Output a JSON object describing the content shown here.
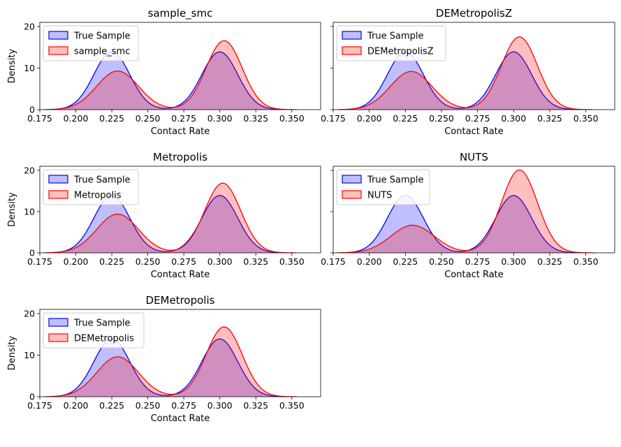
{
  "chart_data": [
    {
      "type": "area",
      "title": "sample_smc",
      "xlabel": "Contact Rate",
      "ylabel": "Density",
      "xlim": [
        0.175,
        0.37
      ],
      "ylim": [
        0,
        21
      ],
      "xticks": [
        "0.175",
        "0.200",
        "0.225",
        "0.250",
        "0.275",
        "0.300",
        "0.325",
        "0.350"
      ],
      "yticks": [
        "0",
        "10",
        "20"
      ],
      "legend": "top-left",
      "series": [
        {
          "name": "True Sample",
          "color": "#0000ff",
          "fill": "#bfbfff",
          "components": [
            {
              "mean": 0.225,
              "sd": 0.0125,
              "peak": 13.9
            },
            {
              "mean": 0.3,
              "sd": 0.0125,
              "peak": 13.9
            }
          ]
        },
        {
          "name": "sample_smc",
          "color": "#ff0000",
          "fill": "#ffbfbf",
          "components": [
            {
              "mean": 0.229,
              "sd": 0.0145,
              "peak": 9.3
            },
            {
              "mean": 0.303,
              "sd": 0.0125,
              "peak": 16.6
            }
          ]
        }
      ]
    },
    {
      "type": "area",
      "title": "DEMetropolisZ",
      "xlabel": "Contact Rate",
      "ylabel": "",
      "xlim": [
        0.175,
        0.37
      ],
      "ylim": [
        0,
        21
      ],
      "xticks": [
        "0.175",
        "0.200",
        "0.225",
        "0.250",
        "0.275",
        "0.300",
        "0.325",
        "0.350"
      ],
      "yticks": [],
      "legend": "top-left",
      "series": [
        {
          "name": "True Sample",
          "color": "#0000ff",
          "fill": "#bfbfff",
          "components": [
            {
              "mean": 0.225,
              "sd": 0.0125,
              "peak": 13.9
            },
            {
              "mean": 0.3,
              "sd": 0.0125,
              "peak": 13.9
            }
          ]
        },
        {
          "name": "DEMetropolisZ",
          "color": "#ff0000",
          "fill": "#ffbfbf",
          "components": [
            {
              "mean": 0.229,
              "sd": 0.0145,
              "peak": 9.2
            },
            {
              "mean": 0.304,
              "sd": 0.0125,
              "peak": 17.5
            }
          ]
        }
      ]
    },
    {
      "type": "area",
      "title": "Metropolis",
      "xlabel": "Contact Rate",
      "ylabel": "Density",
      "xlim": [
        0.175,
        0.37
      ],
      "ylim": [
        0,
        21
      ],
      "xticks": [
        "0.175",
        "0.200",
        "0.225",
        "0.250",
        "0.275",
        "0.300",
        "0.325",
        "0.350"
      ],
      "yticks": [
        "0",
        "10",
        "20"
      ],
      "legend": "top-left",
      "series": [
        {
          "name": "True Sample",
          "color": "#0000ff",
          "fill": "#bfbfff",
          "components": [
            {
              "mean": 0.225,
              "sd": 0.0125,
              "peak": 13.9
            },
            {
              "mean": 0.3,
              "sd": 0.0125,
              "peak": 13.9
            }
          ]
        },
        {
          "name": "Metropolis",
          "color": "#ff0000",
          "fill": "#ffbfbf",
          "components": [
            {
              "mean": 0.229,
              "sd": 0.0145,
              "peak": 9.4
            },
            {
              "mean": 0.302,
              "sd": 0.0125,
              "peak": 16.9
            }
          ]
        }
      ]
    },
    {
      "type": "area",
      "title": "NUTS",
      "xlabel": "Contact Rate",
      "ylabel": "",
      "xlim": [
        0.175,
        0.37
      ],
      "ylim": [
        0,
        21
      ],
      "xticks": [
        "0.175",
        "0.200",
        "0.225",
        "0.250",
        "0.275",
        "0.300",
        "0.325",
        "0.350"
      ],
      "yticks": [],
      "legend": "top-left",
      "series": [
        {
          "name": "True Sample",
          "color": "#0000ff",
          "fill": "#bfbfff",
          "components": [
            {
              "mean": 0.225,
              "sd": 0.0125,
              "peak": 13.9
            },
            {
              "mean": 0.3,
              "sd": 0.0125,
              "peak": 13.9
            }
          ]
        },
        {
          "name": "NUTS",
          "color": "#ff0000",
          "fill": "#ffbfbf",
          "components": [
            {
              "mean": 0.23,
              "sd": 0.015,
              "peak": 6.7
            },
            {
              "mean": 0.304,
              "sd": 0.0125,
              "peak": 20.1
            }
          ]
        }
      ]
    },
    {
      "type": "area",
      "title": "DEMetropolis",
      "xlabel": "Contact Rate",
      "ylabel": "Density",
      "xlim": [
        0.175,
        0.37
      ],
      "ylim": [
        0,
        21
      ],
      "xticks": [
        "0.175",
        "0.200",
        "0.225",
        "0.250",
        "0.275",
        "0.300",
        "0.325",
        "0.350"
      ],
      "yticks": [
        "0",
        "10",
        "20"
      ],
      "legend": "top-left",
      "series": [
        {
          "name": "True Sample",
          "color": "#0000ff",
          "fill": "#bfbfff",
          "components": [
            {
              "mean": 0.225,
              "sd": 0.0125,
              "peak": 13.9
            },
            {
              "mean": 0.3,
              "sd": 0.0125,
              "peak": 13.9
            }
          ]
        },
        {
          "name": "DEMetropolis",
          "color": "#ff0000",
          "fill": "#ffbfbf",
          "components": [
            {
              "mean": 0.229,
              "sd": 0.0145,
              "peak": 9.6
            },
            {
              "mean": 0.303,
              "sd": 0.0125,
              "peak": 16.8
            }
          ]
        }
      ]
    }
  ]
}
